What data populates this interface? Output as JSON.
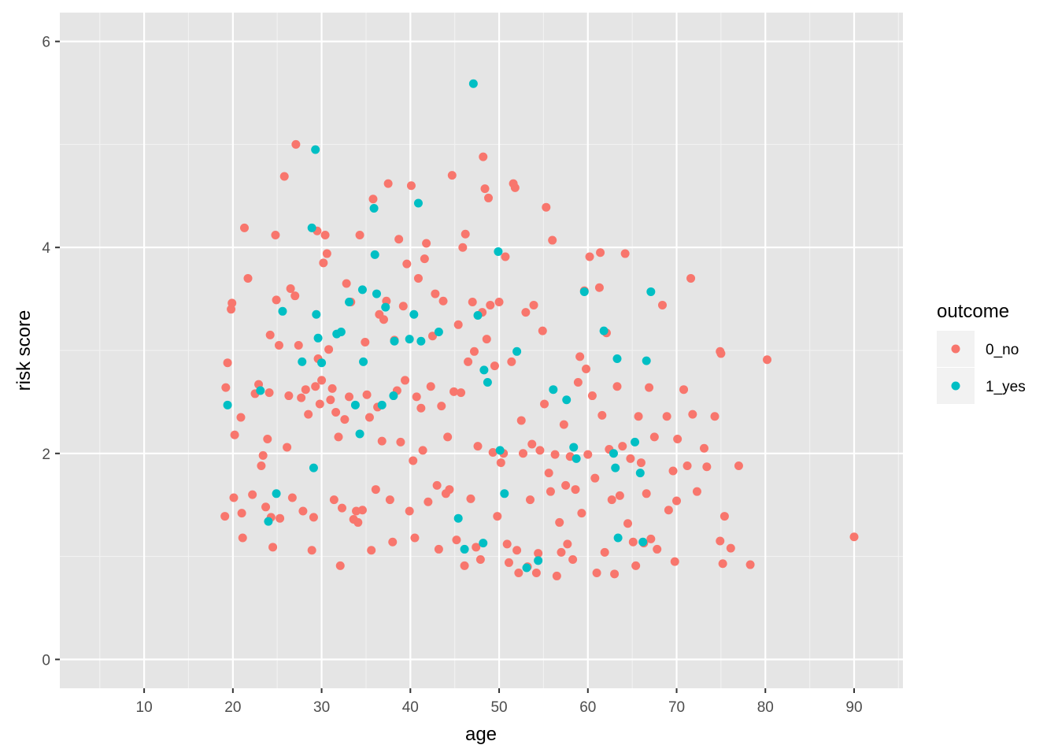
{
  "chart_data": {
    "type": "scatter",
    "xlabel": "age",
    "ylabel": "risk score",
    "xlim": [
      0.5,
      95.5
    ],
    "ylim": [
      -0.28,
      6.28
    ],
    "x_ticks": [
      10,
      20,
      30,
      40,
      50,
      60,
      70,
      80,
      90
    ],
    "y_ticks": [
      0,
      2,
      4,
      6
    ],
    "grid": true,
    "background": "#e5e5e5",
    "legend": {
      "title": "outcome",
      "placement": "right",
      "entries": [
        {
          "label": "0_no",
          "color": "#f8766d"
        },
        {
          "label": "1_yes",
          "color": "#00bfc4"
        }
      ]
    },
    "series": [
      {
        "name": "0_no",
        "color": "#f8766d",
        "points": [
          [
            19.1,
            1.39
          ],
          [
            19.2,
            2.64
          ],
          [
            19.4,
            2.88
          ],
          [
            19.8,
            3.4
          ],
          [
            19.9,
            3.46
          ],
          [
            20.1,
            1.57
          ],
          [
            20.2,
            2.18
          ],
          [
            20.9,
            2.35
          ],
          [
            21.0,
            1.42
          ],
          [
            21.1,
            1.18
          ],
          [
            21.3,
            4.19
          ],
          [
            21.7,
            3.7
          ],
          [
            22.2,
            1.6
          ],
          [
            22.5,
            2.58
          ],
          [
            22.9,
            2.67
          ],
          [
            23.2,
            1.88
          ],
          [
            23.4,
            1.98
          ],
          [
            23.7,
            1.48
          ],
          [
            23.9,
            2.14
          ],
          [
            24.1,
            2.59
          ],
          [
            24.2,
            3.15
          ],
          [
            24.3,
            1.38
          ],
          [
            24.5,
            1.09
          ],
          [
            24.8,
            4.12
          ],
          [
            24.9,
            3.49
          ],
          [
            25.2,
            3.05
          ],
          [
            25.3,
            1.37
          ],
          [
            25.8,
            4.69
          ],
          [
            26.1,
            2.06
          ],
          [
            26.3,
            2.56
          ],
          [
            26.5,
            3.6
          ],
          [
            26.7,
            1.57
          ],
          [
            27.0,
            3.53
          ],
          [
            27.1,
            5.0
          ],
          [
            27.4,
            3.05
          ],
          [
            27.7,
            2.54
          ],
          [
            27.9,
            1.44
          ],
          [
            28.2,
            2.62
          ],
          [
            28.5,
            2.38
          ],
          [
            28.9,
            1.06
          ],
          [
            29.1,
            1.38
          ],
          [
            29.3,
            2.65
          ],
          [
            29.5,
            4.16
          ],
          [
            29.6,
            2.92
          ],
          [
            29.8,
            2.48
          ],
          [
            30.0,
            2.71
          ],
          [
            30.2,
            3.85
          ],
          [
            30.4,
            4.12
          ],
          [
            30.6,
            3.94
          ],
          [
            30.8,
            3.01
          ],
          [
            31.0,
            2.52
          ],
          [
            31.2,
            2.63
          ],
          [
            31.4,
            1.55
          ],
          [
            31.6,
            2.4
          ],
          [
            31.9,
            2.16
          ],
          [
            32.1,
            0.91
          ],
          [
            32.3,
            1.47
          ],
          [
            32.6,
            2.33
          ],
          [
            32.8,
            3.65
          ],
          [
            33.1,
            2.55
          ],
          [
            33.3,
            3.47
          ],
          [
            33.6,
            1.36
          ],
          [
            33.9,
            1.44
          ],
          [
            34.1,
            1.33
          ],
          [
            34.3,
            4.12
          ],
          [
            34.6,
            1.45
          ],
          [
            34.9,
            3.08
          ],
          [
            35.1,
            2.57
          ],
          [
            35.4,
            2.35
          ],
          [
            35.6,
            1.06
          ],
          [
            35.8,
            4.47
          ],
          [
            36.1,
            1.65
          ],
          [
            36.3,
            2.45
          ],
          [
            36.5,
            3.35
          ],
          [
            36.8,
            2.12
          ],
          [
            37.0,
            3.3
          ],
          [
            37.3,
            3.48
          ],
          [
            37.5,
            4.62
          ],
          [
            37.7,
            1.55
          ],
          [
            38.0,
            1.14
          ],
          [
            38.2,
            3.1
          ],
          [
            38.5,
            2.61
          ],
          [
            38.7,
            4.08
          ],
          [
            38.9,
            2.11
          ],
          [
            39.2,
            3.43
          ],
          [
            39.4,
            2.71
          ],
          [
            39.6,
            3.84
          ],
          [
            39.9,
            1.44
          ],
          [
            40.1,
            4.6
          ],
          [
            40.3,
            1.93
          ],
          [
            40.5,
            1.18
          ],
          [
            40.7,
            2.55
          ],
          [
            40.9,
            3.7
          ],
          [
            41.2,
            2.44
          ],
          [
            41.4,
            2.03
          ],
          [
            41.6,
            3.89
          ],
          [
            41.8,
            4.04
          ],
          [
            42.0,
            1.53
          ],
          [
            42.3,
            2.65
          ],
          [
            42.5,
            3.14
          ],
          [
            42.8,
            3.55
          ],
          [
            43.0,
            1.69
          ],
          [
            43.2,
            1.07
          ],
          [
            43.5,
            2.46
          ],
          [
            43.7,
            3.48
          ],
          [
            44.0,
            1.61
          ],
          [
            44.2,
            2.16
          ],
          [
            44.4,
            1.65
          ],
          [
            44.7,
            4.7
          ],
          [
            44.9,
            2.6
          ],
          [
            45.2,
            1.16
          ],
          [
            45.4,
            3.25
          ],
          [
            45.7,
            2.59
          ],
          [
            45.9,
            4.0
          ],
          [
            46.1,
            0.91
          ],
          [
            46.2,
            4.13
          ],
          [
            46.5,
            2.89
          ],
          [
            46.8,
            1.56
          ],
          [
            47.0,
            3.47
          ],
          [
            47.2,
            2.99
          ],
          [
            47.4,
            1.09
          ],
          [
            47.6,
            2.07
          ],
          [
            47.9,
            0.97
          ],
          [
            48.1,
            3.37
          ],
          [
            48.2,
            4.88
          ],
          [
            48.4,
            4.57
          ],
          [
            48.6,
            3.11
          ],
          [
            48.8,
            4.48
          ],
          [
            49.0,
            3.44
          ],
          [
            49.3,
            2.01
          ],
          [
            49.5,
            2.85
          ],
          [
            49.8,
            1.39
          ],
          [
            50.0,
            3.47
          ],
          [
            50.2,
            1.91
          ],
          [
            50.5,
            2.0
          ],
          [
            50.7,
            3.91
          ],
          [
            50.9,
            1.12
          ],
          [
            51.1,
            0.94
          ],
          [
            51.4,
            2.89
          ],
          [
            51.6,
            4.62
          ],
          [
            51.8,
            4.58
          ],
          [
            52.0,
            1.06
          ],
          [
            52.2,
            0.84
          ],
          [
            52.5,
            2.32
          ],
          [
            52.7,
            2.0
          ],
          [
            53.0,
            3.37
          ],
          [
            53.2,
            0.9
          ],
          [
            53.5,
            1.55
          ],
          [
            53.7,
            2.09
          ],
          [
            53.9,
            3.44
          ],
          [
            54.2,
            0.84
          ],
          [
            54.4,
            1.03
          ],
          [
            54.6,
            2.03
          ],
          [
            54.9,
            3.19
          ],
          [
            55.1,
            2.48
          ],
          [
            55.3,
            4.39
          ],
          [
            55.6,
            1.81
          ],
          [
            55.8,
            1.63
          ],
          [
            56.0,
            4.07
          ],
          [
            56.3,
            1.99
          ],
          [
            56.5,
            0.81
          ],
          [
            56.8,
            1.33
          ],
          [
            57.0,
            1.04
          ],
          [
            57.3,
            2.28
          ],
          [
            57.5,
            1.69
          ],
          [
            57.7,
            1.12
          ],
          [
            58.0,
            1.97
          ],
          [
            58.3,
            0.97
          ],
          [
            58.6,
            1.65
          ],
          [
            58.9,
            2.69
          ],
          [
            59.1,
            2.94
          ],
          [
            59.3,
            1.42
          ],
          [
            59.6,
            3.58
          ],
          [
            59.8,
            2.82
          ],
          [
            60.0,
            1.99
          ],
          [
            60.2,
            3.91
          ],
          [
            60.5,
            2.56
          ],
          [
            60.8,
            1.76
          ],
          [
            61.0,
            0.84
          ],
          [
            61.3,
            3.61
          ],
          [
            61.4,
            3.95
          ],
          [
            61.6,
            2.37
          ],
          [
            61.9,
            1.04
          ],
          [
            62.1,
            3.17
          ],
          [
            62.4,
            2.04
          ],
          [
            62.7,
            1.55
          ],
          [
            63.0,
            0.83
          ],
          [
            63.3,
            2.65
          ],
          [
            63.6,
            1.59
          ],
          [
            63.9,
            2.07
          ],
          [
            64.2,
            3.94
          ],
          [
            64.5,
            1.32
          ],
          [
            64.8,
            1.95
          ],
          [
            65.1,
            1.14
          ],
          [
            65.4,
            0.91
          ],
          [
            65.7,
            2.36
          ],
          [
            66.0,
            1.91
          ],
          [
            66.3,
            1.13
          ],
          [
            66.6,
            1.61
          ],
          [
            66.9,
            2.64
          ],
          [
            67.1,
            1.17
          ],
          [
            67.5,
            2.16
          ],
          [
            67.8,
            1.07
          ],
          [
            68.4,
            3.44
          ],
          [
            68.9,
            2.36
          ],
          [
            69.1,
            1.45
          ],
          [
            69.6,
            1.83
          ],
          [
            69.8,
            0.95
          ],
          [
            70.0,
            1.54
          ],
          [
            70.1,
            2.14
          ],
          [
            70.8,
            2.62
          ],
          [
            71.2,
            1.88
          ],
          [
            71.6,
            3.7
          ],
          [
            71.8,
            2.38
          ],
          [
            72.3,
            1.63
          ],
          [
            73.1,
            2.05
          ],
          [
            73.4,
            1.87
          ],
          [
            74.3,
            2.36
          ],
          [
            74.9,
            1.15
          ],
          [
            74.9,
            2.99
          ],
          [
            75.0,
            2.97
          ],
          [
            75.2,
            0.93
          ],
          [
            75.4,
            1.39
          ],
          [
            76.1,
            1.08
          ],
          [
            77.0,
            1.88
          ],
          [
            78.3,
            0.92
          ],
          [
            80.2,
            2.91
          ],
          [
            90.0,
            1.19
          ]
        ]
      },
      {
        "name": "1_yes",
        "color": "#00bfc4",
        "points": [
          [
            19.4,
            2.47
          ],
          [
            23.1,
            2.61
          ],
          [
            24.0,
            1.34
          ],
          [
            24.9,
            1.61
          ],
          [
            25.6,
            3.38
          ],
          [
            27.8,
            2.89
          ],
          [
            28.9,
            4.19
          ],
          [
            29.1,
            1.86
          ],
          [
            29.3,
            4.95
          ],
          [
            29.4,
            3.35
          ],
          [
            29.6,
            3.12
          ],
          [
            30.0,
            2.88
          ],
          [
            31.7,
            3.16
          ],
          [
            32.2,
            3.18
          ],
          [
            33.1,
            3.47
          ],
          [
            33.8,
            2.47
          ],
          [
            34.3,
            2.19
          ],
          [
            34.6,
            3.59
          ],
          [
            34.7,
            2.89
          ],
          [
            35.9,
            4.38
          ],
          [
            36.0,
            3.93
          ],
          [
            36.2,
            3.55
          ],
          [
            36.8,
            2.47
          ],
          [
            37.2,
            3.42
          ],
          [
            38.1,
            2.56
          ],
          [
            38.2,
            3.09
          ],
          [
            39.9,
            3.11
          ],
          [
            40.4,
            3.35
          ],
          [
            40.9,
            4.43
          ],
          [
            41.2,
            3.09
          ],
          [
            43.2,
            3.18
          ],
          [
            45.4,
            1.37
          ],
          [
            46.1,
            1.07
          ],
          [
            47.1,
            5.59
          ],
          [
            47.6,
            3.34
          ],
          [
            48.2,
            1.13
          ],
          [
            48.3,
            2.81
          ],
          [
            48.7,
            2.69
          ],
          [
            49.9,
            3.96
          ],
          [
            50.1,
            2.03
          ],
          [
            50.6,
            1.61
          ],
          [
            52.0,
            2.99
          ],
          [
            53.1,
            0.89
          ],
          [
            54.4,
            0.96
          ],
          [
            56.1,
            2.62
          ],
          [
            57.6,
            2.52
          ],
          [
            58.4,
            2.06
          ],
          [
            58.7,
            1.95
          ],
          [
            59.6,
            3.57
          ],
          [
            61.8,
            3.19
          ],
          [
            62.9,
            2.0
          ],
          [
            63.1,
            1.86
          ],
          [
            63.3,
            2.92
          ],
          [
            63.4,
            1.18
          ],
          [
            65.3,
            2.11
          ],
          [
            65.9,
            1.81
          ],
          [
            66.2,
            1.14
          ],
          [
            66.6,
            2.9
          ],
          [
            67.1,
            3.57
          ]
        ]
      }
    ]
  }
}
